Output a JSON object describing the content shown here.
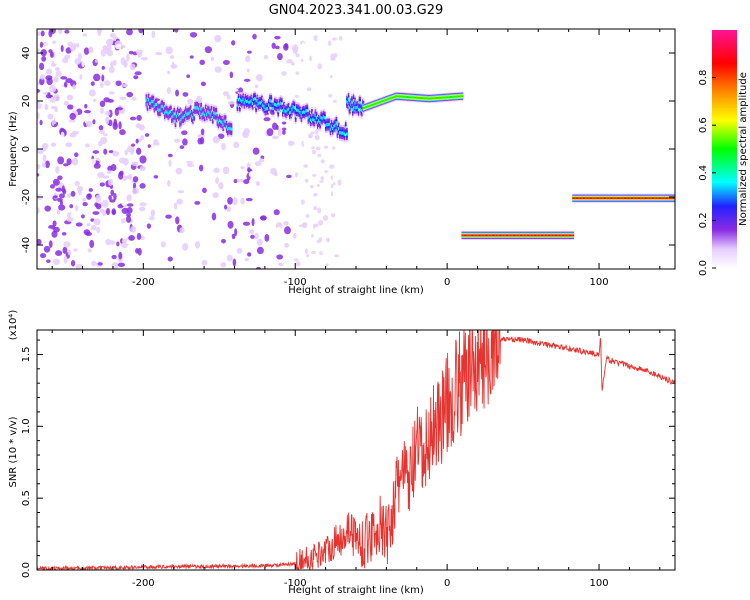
{
  "title": "GN04.2023.341.00.03.G29",
  "chart_data": [
    {
      "type": "heatmap",
      "xlabel": "Height of straight line (km)",
      "ylabel": "Frequency (Hz)",
      "xlim": [
        -270,
        150
      ],
      "ylim": [
        -50,
        50
      ],
      "xticks": [
        -200,
        -100,
        0,
        100
      ],
      "yticks": [
        -40,
        -20,
        0,
        20,
        40
      ],
      "colorbar": {
        "label": "Normalized spectral amplitude",
        "range": [
          0,
          1
        ],
        "ticks": [
          0.0,
          0.2,
          0.4,
          0.6,
          0.8
        ]
      },
      "tracks": [
        {
          "x_start": -198,
          "x_end": -142,
          "freq": [
            20,
            13,
            16,
            9
          ],
          "amplitude": 0.25
        },
        {
          "x_start": -138,
          "x_end": -66,
          "freq": [
            20,
            18,
            14,
            7
          ],
          "amplitude": 0.28
        },
        {
          "x_start": -66,
          "x_end": -55,
          "freq": [
            19,
            17
          ],
          "amplitude": 0.35
        },
        {
          "x_start": -55,
          "x_end": 10,
          "freq": [
            17,
            22,
            21,
            22
          ],
          "amplitude": 0.6
        },
        {
          "x_start": 10,
          "x_end": 83,
          "freq": [
            -36,
            -36
          ],
          "amplitude": 0.9
        },
        {
          "x_start": 83,
          "x_end": 150,
          "freq": [
            -20.5,
            -20.5
          ],
          "amplitude": 0.9
        }
      ]
    },
    {
      "type": "line",
      "xlabel": "Height of straight line (km)",
      "ylabel": "SNR (10 * v/v)",
      "y_multiplier": "(x10⁴)",
      "xlim": [
        -270,
        150
      ],
      "ylim": [
        0,
        1.67
      ],
      "xticks": [
        -200,
        -100,
        0,
        100
      ],
      "yticks": [
        "0.0",
        "0.5",
        "1.0",
        "1.5"
      ],
      "color": "#e8322e",
      "series": [
        {
          "x": [
            -270,
            -220,
            -180,
            -150,
            -120,
            -100,
            -90,
            -80,
            -70,
            -65,
            -60,
            -55,
            -50,
            -45,
            -40,
            -35,
            -30,
            -25,
            -20,
            -15,
            -10,
            -5,
            0,
            5,
            10,
            15,
            20,
            25,
            30,
            40,
            50,
            60,
            70,
            80,
            90,
            100,
            101,
            102,
            105,
            110,
            120,
            130,
            140,
            150
          ],
          "y": [
            0.01,
            0.015,
            0.025,
            0.025,
            0.03,
            0.04,
            0.08,
            0.14,
            0.22,
            0.3,
            0.22,
            0.18,
            0.25,
            0.32,
            0.22,
            0.45,
            0.7,
            0.6,
            0.85,
            0.75,
            1.0,
            1.05,
            1.15,
            1.25,
            1.3,
            1.4,
            1.45,
            1.52,
            1.58,
            1.61,
            1.6,
            1.58,
            1.56,
            1.54,
            1.52,
            1.5,
            1.62,
            1.25,
            1.47,
            1.45,
            1.42,
            1.39,
            1.35,
            1.3
          ]
        }
      ]
    }
  ]
}
